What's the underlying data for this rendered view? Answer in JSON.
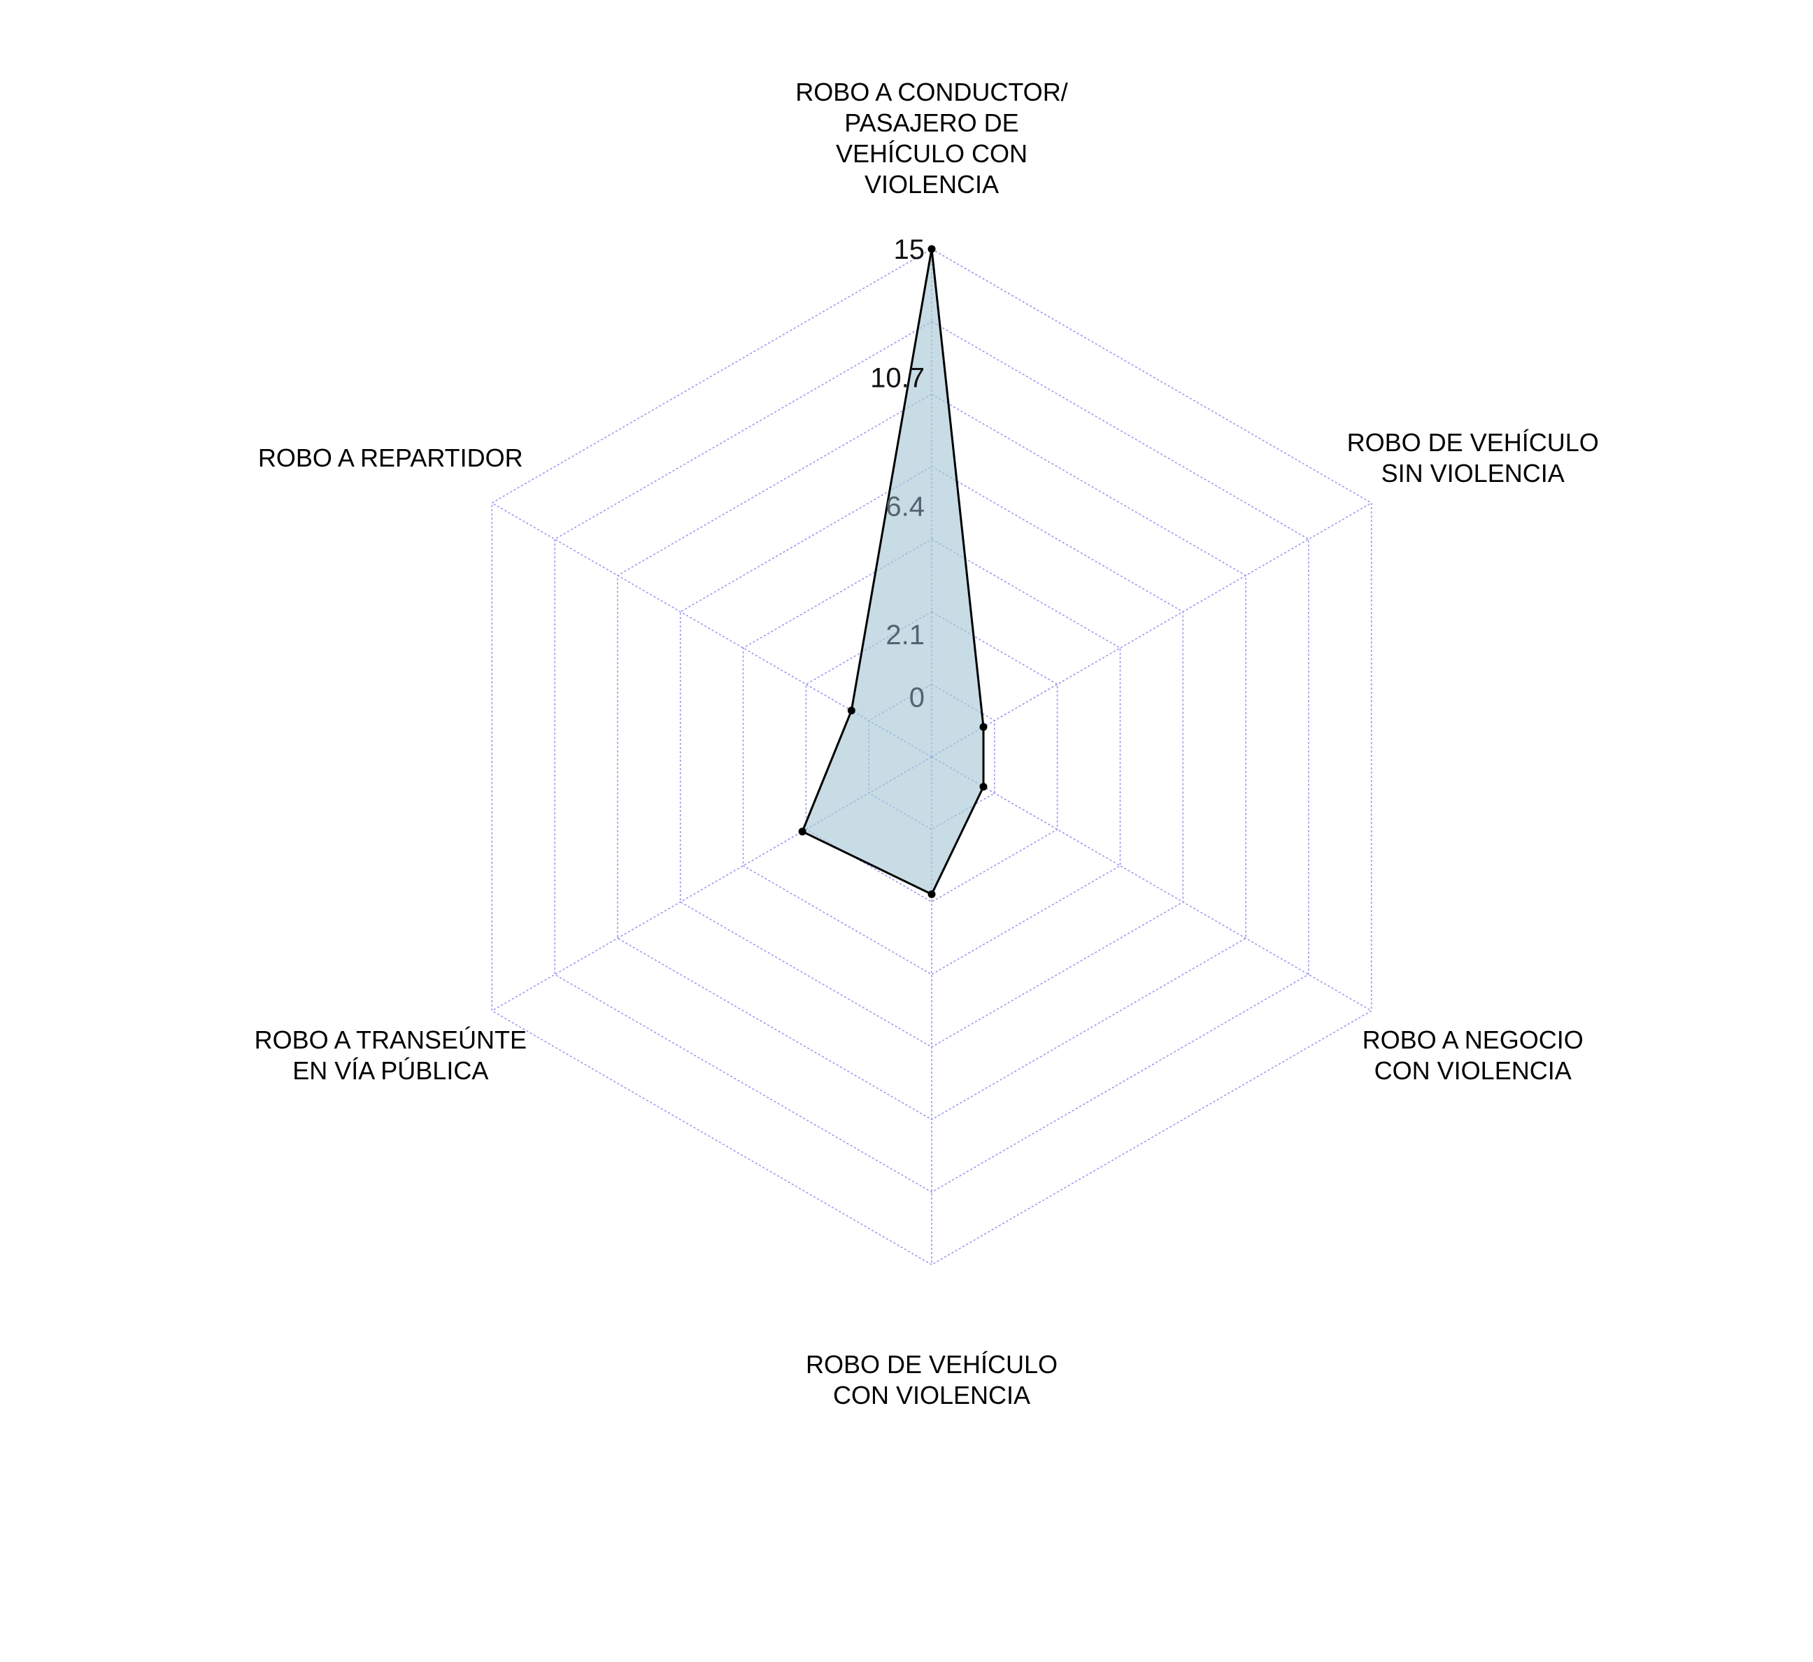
{
  "chart_data": {
    "type": "radar",
    "title": "",
    "axes": [
      {
        "name": "axis_conductor",
        "label_lines": [
          "ROBO A CONDUCTOR/",
          "PASAJERO DE",
          "VEHÍCULO CON",
          "VIOLENCIA"
        ]
      },
      {
        "name": "axis_vehiculo_sin",
        "label_lines": [
          "ROBO DE VEHÍCULO",
          "SIN VIOLENCIA"
        ]
      },
      {
        "name": "axis_negocio",
        "label_lines": [
          "ROBO A NEGOCIO",
          "CON VIOLENCIA"
        ]
      },
      {
        "name": "axis_vehiculo_con",
        "label_lines": [
          "ROBO DE VEHÍCULO",
          "CON VIOLENCIA"
        ]
      },
      {
        "name": "axis_transeunte",
        "label_lines": [
          "ROBO A TRANSEÚNTE",
          "EN VÍA PÚBLICA"
        ]
      },
      {
        "name": "axis_repartidor",
        "label_lines": [
          "ROBO A REPARTIDOR"
        ]
      }
    ],
    "series": [
      {
        "values": [
          15,
          0,
          0,
          2.6,
          3.0,
          1.1
        ]
      }
    ],
    "range": [
      -2,
      15
    ],
    "rings": 7,
    "tick_labels": [
      "0",
      "2.1",
      "6.4",
      "10.7",
      "15"
    ],
    "tick_values": [
      0,
      2.1,
      6.4,
      10.7,
      15
    ],
    "colors": {
      "fill": "#a9c9d6",
      "stroke": "#000000",
      "grid": "#9999ee",
      "tick_high": "#111111",
      "tick_low": "#556270"
    }
  }
}
